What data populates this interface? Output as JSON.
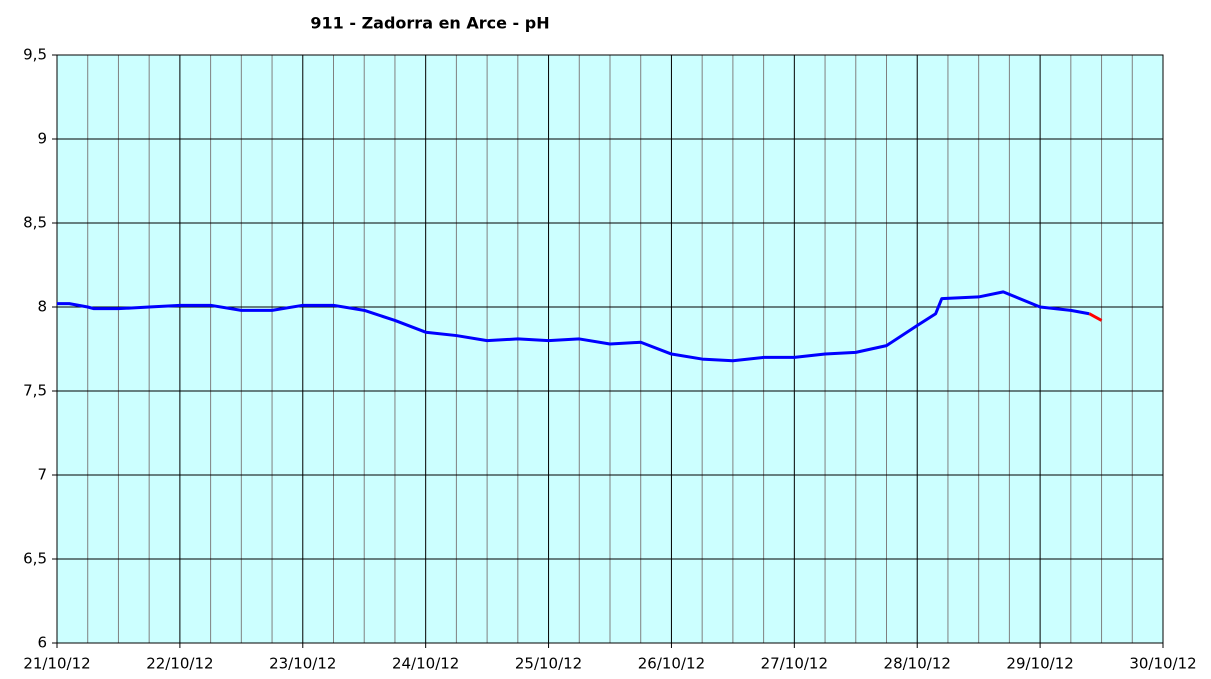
{
  "chart_data": {
    "type": "line",
    "title": "911 - Zadorra en Arce - pH",
    "xlim": [
      0,
      9
    ],
    "xticks": [
      {
        "value": 0,
        "label": "21/10/12"
      },
      {
        "value": 1,
        "label": "22/10/12"
      },
      {
        "value": 2,
        "label": "23/10/12"
      },
      {
        "value": 3,
        "label": "24/10/12"
      },
      {
        "value": 4,
        "label": "25/10/12"
      },
      {
        "value": 5,
        "label": "26/10/12"
      },
      {
        "value": 6,
        "label": "27/10/12"
      },
      {
        "value": 7,
        "label": "28/10/12"
      },
      {
        "value": 8,
        "label": "29/10/12"
      },
      {
        "value": 9,
        "label": "30/10/12"
      }
    ],
    "xminorticks": [
      0.25,
      0.5,
      0.75,
      1.25,
      1.5,
      1.75,
      2.25,
      2.5,
      2.75,
      3.25,
      3.5,
      3.75,
      4.25,
      4.5,
      4.75,
      5.25,
      5.5,
      5.75,
      6.25,
      6.5,
      6.75,
      7.25,
      7.5,
      7.75,
      8.25,
      8.5,
      8.75
    ],
    "ylim": [
      6,
      9.5
    ],
    "yticks": [
      6,
      {
        "value": 6.5,
        "label": "6,5"
      },
      7,
      {
        "value": 7.5,
        "label": "7,5"
      },
      8,
      {
        "value": 8.5,
        "label": "8,5"
      },
      9,
      {
        "value": 9.5,
        "label": "9,5"
      }
    ],
    "grid": true,
    "background": "#ccffff",
    "series": [
      {
        "color": "#0000ff",
        "x": [
          0,
          0.1,
          0.25,
          0.3,
          0.5,
          0.75,
          1,
          1.25,
          1.5,
          1.75,
          2,
          2.25,
          2.5,
          2.75,
          3,
          3.25,
          3.5,
          3.75,
          4,
          4.25,
          4.5,
          4.75,
          5,
          5.25,
          5.5,
          5.75,
          6,
          6.25,
          6.5,
          6.75,
          7,
          7.15,
          7.2,
          7.5,
          7.7,
          8,
          8.25,
          8.4
        ],
        "values": [
          8.02,
          8.02,
          8.0,
          7.99,
          7.99,
          8.0,
          8.01,
          8.01,
          7.98,
          7.98,
          8.01,
          8.01,
          7.98,
          7.92,
          7.85,
          7.83,
          7.8,
          7.81,
          7.8,
          7.81,
          7.78,
          7.79,
          7.72,
          7.69,
          7.68,
          7.7,
          7.7,
          7.72,
          7.73,
          7.77,
          7.89,
          7.96,
          8.05,
          8.06,
          8.09,
          8.0,
          7.98,
          7.96
        ]
      },
      {
        "color": "#ff0000",
        "x": [
          8.4,
          8.5
        ],
        "values": [
          7.96,
          7.92
        ]
      }
    ]
  }
}
